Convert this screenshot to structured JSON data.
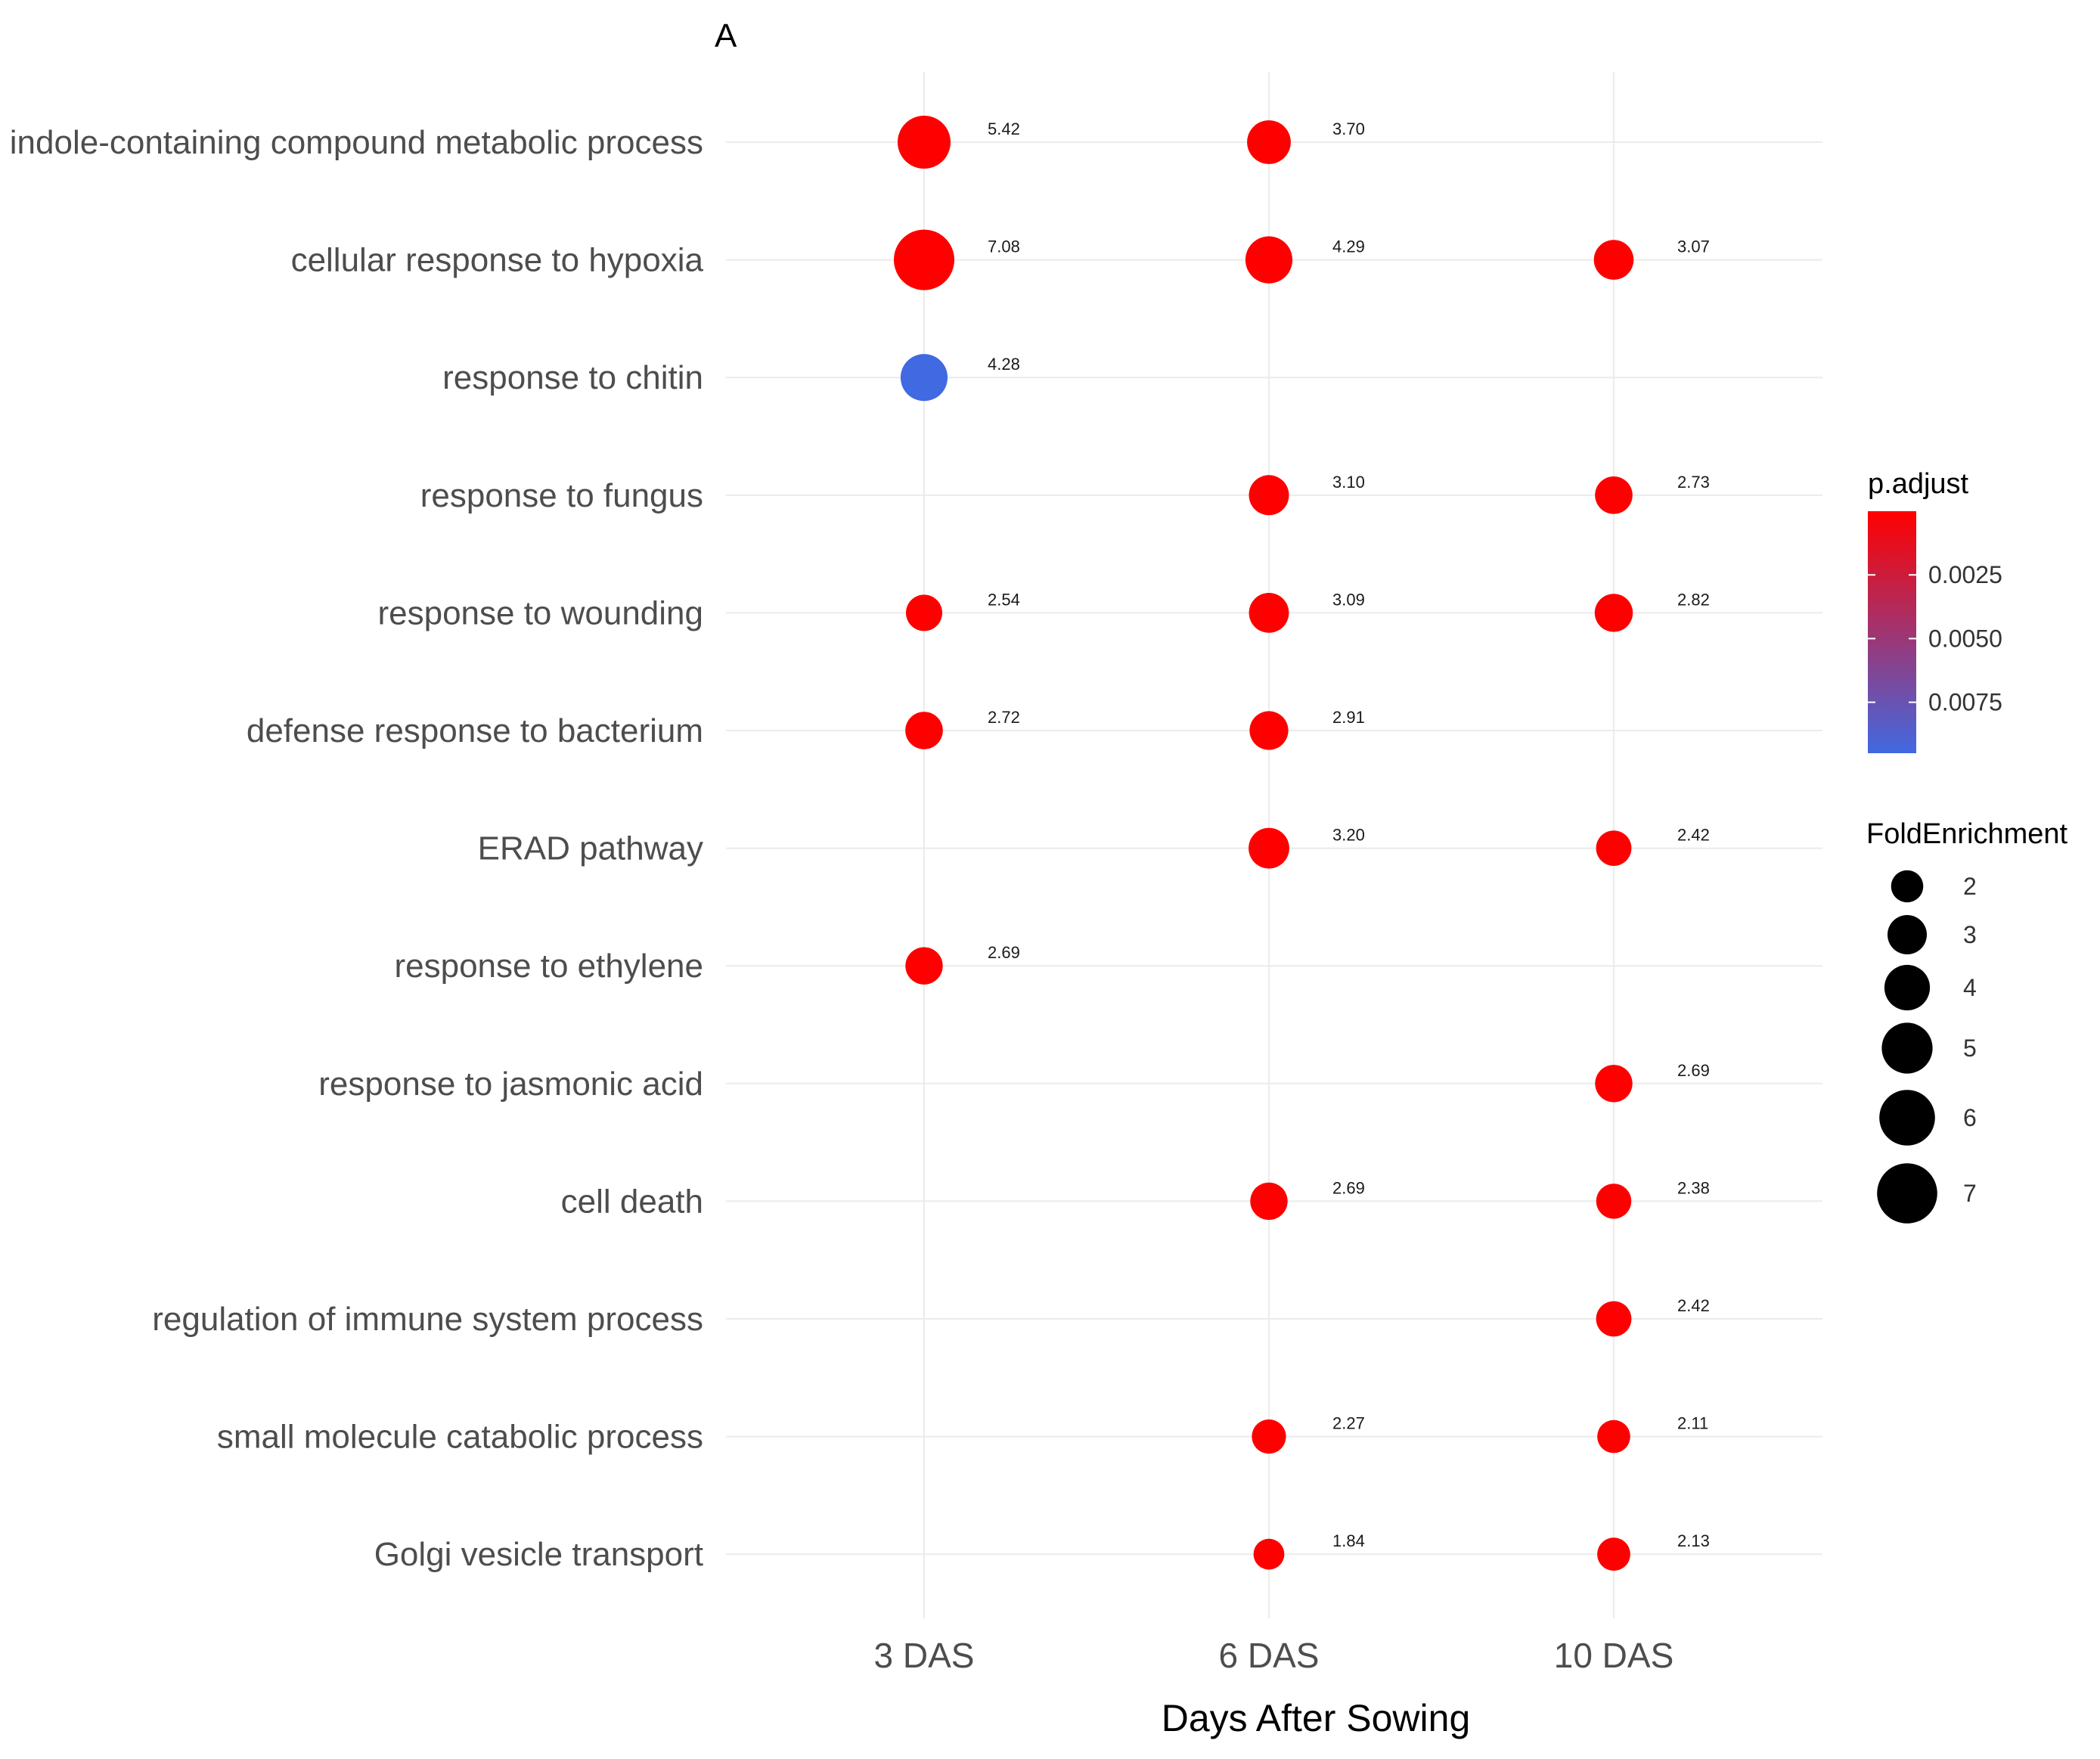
{
  "chart_data": {
    "type": "scatter",
    "panel_label": "A",
    "xlabel": "Days After Sowing",
    "categories": [
      "3 DAS",
      "6 DAS",
      "10 DAS"
    ],
    "terms": [
      "indole-containing compound metabolic process",
      "cellular response to hypoxia",
      "response to chitin",
      "response to fungus",
      "response to wounding",
      "defense response to bacterium",
      "ERAD pathway",
      "response to ethylene",
      "response to jasmonic acid",
      "cell death",
      "regulation of immune system process",
      "small molecule catabolic process",
      "Golgi vesicle transport"
    ],
    "points": [
      {
        "term": "indole-containing compound metabolic process",
        "x": "3 DAS",
        "fold_enrichment": 5.42,
        "label": "5.42",
        "p_adjust": 0.0
      },
      {
        "term": "indole-containing compound metabolic process",
        "x": "6 DAS",
        "fold_enrichment": 3.7,
        "label": "3.70",
        "p_adjust": 0.0
      },
      {
        "term": "cellular response to hypoxia",
        "x": "3 DAS",
        "fold_enrichment": 7.08,
        "label": "7.08",
        "p_adjust": 0.0
      },
      {
        "term": "cellular response to hypoxia",
        "x": "6 DAS",
        "fold_enrichment": 4.29,
        "label": "4.29",
        "p_adjust": 0.0
      },
      {
        "term": "cellular response to hypoxia",
        "x": "10 DAS",
        "fold_enrichment": 3.07,
        "label": "3.07",
        "p_adjust": 0.0
      },
      {
        "term": "response to chitin",
        "x": "3 DAS",
        "fold_enrichment": 4.28,
        "label": "4.28",
        "p_adjust": 0.0095
      },
      {
        "term": "response to fungus",
        "x": "6 DAS",
        "fold_enrichment": 3.1,
        "label": "3.10",
        "p_adjust": 0.0
      },
      {
        "term": "response to fungus",
        "x": "10 DAS",
        "fold_enrichment": 2.73,
        "label": "2.73",
        "p_adjust": 0.0
      },
      {
        "term": "response to wounding",
        "x": "3 DAS",
        "fold_enrichment": 2.54,
        "label": "2.54",
        "p_adjust": 0.0
      },
      {
        "term": "response to wounding",
        "x": "6 DAS",
        "fold_enrichment": 3.09,
        "label": "3.09",
        "p_adjust": 0.0
      },
      {
        "term": "response to wounding",
        "x": "10 DAS",
        "fold_enrichment": 2.82,
        "label": "2.82",
        "p_adjust": 0.0
      },
      {
        "term": "defense response to bacterium",
        "x": "3 DAS",
        "fold_enrichment": 2.72,
        "label": "2.72",
        "p_adjust": 0.0
      },
      {
        "term": "defense response to bacterium",
        "x": "6 DAS",
        "fold_enrichment": 2.91,
        "label": "2.91",
        "p_adjust": 0.0
      },
      {
        "term": "ERAD pathway",
        "x": "6 DAS",
        "fold_enrichment": 3.2,
        "label": "3.20",
        "p_adjust": 0.0
      },
      {
        "term": "ERAD pathway",
        "x": "10 DAS",
        "fold_enrichment": 2.42,
        "label": "2.42",
        "p_adjust": 0.0
      },
      {
        "term": "response to ethylene",
        "x": "3 DAS",
        "fold_enrichment": 2.69,
        "label": "2.69",
        "p_adjust": 0.0
      },
      {
        "term": "response to jasmonic acid",
        "x": "10 DAS",
        "fold_enrichment": 2.69,
        "label": "2.69",
        "p_adjust": 0.0
      },
      {
        "term": "cell death",
        "x": "6 DAS",
        "fold_enrichment": 2.69,
        "label": "2.69",
        "p_adjust": 0.0
      },
      {
        "term": "cell death",
        "x": "10 DAS",
        "fold_enrichment": 2.38,
        "label": "2.38",
        "p_adjust": 0.0
      },
      {
        "term": "regulation of immune system process",
        "x": "10 DAS",
        "fold_enrichment": 2.42,
        "label": "2.42",
        "p_adjust": 0.0
      },
      {
        "term": "small molecule catabolic process",
        "x": "6 DAS",
        "fold_enrichment": 2.27,
        "label": "2.27",
        "p_adjust": 0.0
      },
      {
        "term": "small molecule catabolic process",
        "x": "10 DAS",
        "fold_enrichment": 2.11,
        "label": "2.11",
        "p_adjust": 0.0
      },
      {
        "term": "Golgi vesicle transport",
        "x": "6 DAS",
        "fold_enrichment": 1.84,
        "label": "1.84",
        "p_adjust": 0.0
      },
      {
        "term": "Golgi vesicle transport",
        "x": "10 DAS",
        "fold_enrichment": 2.13,
        "label": "2.13",
        "p_adjust": 0.0
      }
    ],
    "color_legend": {
      "title": "p.adjust",
      "range": [
        0.0,
        0.0095
      ],
      "ticks": [
        0.0025,
        0.005,
        0.0075
      ],
      "tick_labels": [
        "0.0025",
        "0.0050",
        "0.0075"
      ],
      "low_color": "#ff0000",
      "high_color": "#4169e1"
    },
    "size_legend": {
      "title": "FoldEnrichment",
      "values": [
        2,
        3,
        4,
        5,
        6,
        7
      ],
      "labels": [
        "2",
        "3",
        "4",
        "5",
        "6",
        "7"
      ]
    },
    "grid": true
  }
}
